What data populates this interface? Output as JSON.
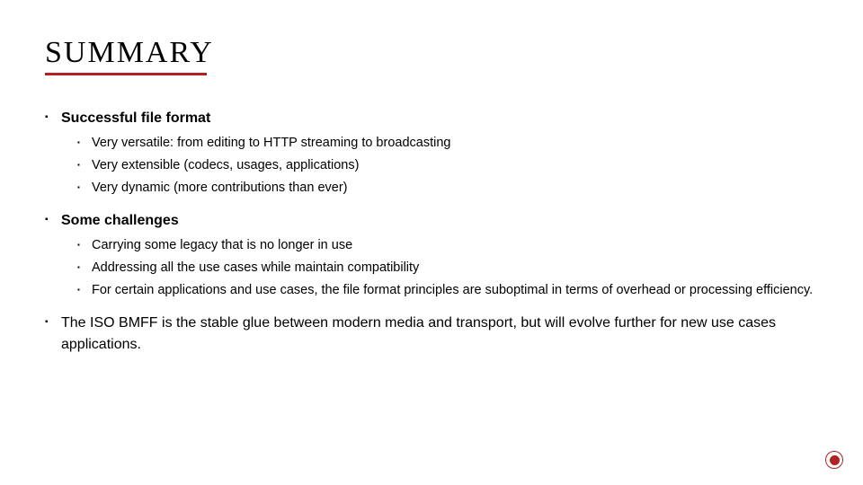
{
  "title": "SUMMARY",
  "title_underline_color": "#b22222",
  "accent_color": "#b22222",
  "background_color": "#ffffff",
  "text_color": "#000000",
  "bullets": [
    {
      "text": "Successful file format",
      "bold": true,
      "children": [
        {
          "text": "Very versatile: from editing to HTTP streaming to broadcasting"
        },
        {
          "text": "Very extensible (codecs, usages, applications)"
        },
        {
          "text": "Very dynamic (more contributions than ever)"
        }
      ]
    },
    {
      "text": "Some challenges",
      "bold": true,
      "children": [
        {
          "text": "Carrying some legacy that is no longer in use"
        },
        {
          "text": "Addressing all the use cases while maintain compatibility"
        },
        {
          "text": "For certain applications and use cases, the file format principles are suboptimal in terms of overhead or processing efficiency."
        }
      ]
    },
    {
      "text": "The ISO BMFF is the stable glue between modern media and transport, but will evolve further for new use cases applications.",
      "bold": false,
      "children": []
    }
  ],
  "bullet_glyph": "▪"
}
